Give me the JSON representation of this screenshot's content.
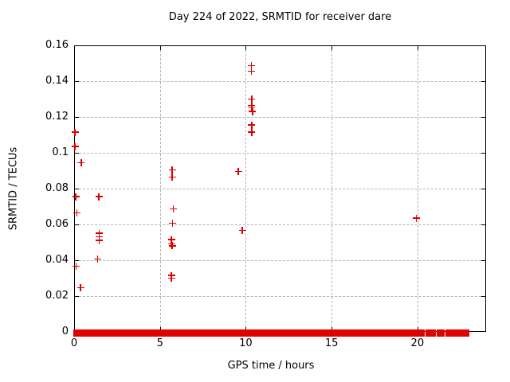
{
  "title": "Day 224 of 2022, SRMTID for receiver dare",
  "colors": {
    "marker": "#e10000",
    "grid": "#b3b3b3",
    "axis": "#000000",
    "background": "#ffffff"
  },
  "chart_data": {
    "type": "scatter",
    "title": "Day 224 of 2022, SRMTID for receiver dare",
    "xlabel": "GPS time / hours",
    "ylabel": "SRMTID / TECUs",
    "xlim": [
      0,
      24
    ],
    "ylim": [
      0,
      0.16
    ],
    "xticks": {
      "values": [
        0,
        5,
        10,
        15,
        20
      ],
      "labels": [
        "0",
        "5",
        "10",
        "15",
        "20"
      ]
    },
    "yticks": {
      "values": [
        0,
        0.02,
        0.04,
        0.06,
        0.08,
        0.1,
        0.12,
        0.14,
        0.16
      ],
      "labels": [
        "0",
        "0.02",
        "0.04",
        "0.06",
        "0.08",
        "0.1",
        "0.12",
        "0.14",
        "0.16"
      ]
    },
    "grid": true,
    "legend": false,
    "marker": "plus",
    "series": [
      {
        "name": "SRMTID",
        "color": "#e10000",
        "points": [
          [
            0.0,
            0.112
          ],
          [
            0.0,
            0.104
          ],
          [
            0.37,
            0.095
          ],
          [
            0.05,
            0.076
          ],
          [
            0.12,
            0.067
          ],
          [
            0.07,
            0.037
          ],
          [
            0.33,
            0.025
          ],
          [
            1.4,
            0.076
          ],
          [
            1.42,
            0.0555
          ],
          [
            1.42,
            0.0535
          ],
          [
            1.42,
            0.0515
          ],
          [
            1.32,
            0.041
          ],
          [
            5.67,
            0.091
          ],
          [
            5.67,
            0.087
          ],
          [
            5.72,
            0.069
          ],
          [
            5.7,
            0.061
          ],
          [
            5.62,
            0.052
          ],
          [
            5.62,
            0.0495
          ],
          [
            5.67,
            0.0485
          ],
          [
            5.62,
            0.032
          ],
          [
            5.62,
            0.0305
          ],
          [
            9.52,
            0.09
          ],
          [
            9.75,
            0.057
          ],
          [
            10.27,
            0.149
          ],
          [
            10.27,
            0.146
          ],
          [
            10.3,
            0.1305
          ],
          [
            10.3,
            0.127
          ],
          [
            10.3,
            0.126
          ],
          [
            10.35,
            0.1235
          ],
          [
            10.3,
            0.116
          ],
          [
            10.3,
            0.112
          ],
          [
            19.9,
            0.064
          ]
        ]
      }
    ],
    "zero_line_value": 0,
    "zero_line_segments_hours": [
      [
        0.02,
        0.55
      ],
      [
        0.65,
        1.15
      ],
      [
        1.25,
        1.55
      ],
      [
        1.62,
        2.05
      ],
      [
        2.12,
        2.45
      ],
      [
        2.52,
        3.6
      ],
      [
        3.75,
        4.15
      ],
      [
        4.22,
        4.5
      ],
      [
        4.57,
        4.95
      ],
      [
        5.02,
        5.3
      ],
      [
        5.37,
        5.85
      ],
      [
        5.95,
        6.5
      ],
      [
        6.57,
        6.9
      ],
      [
        6.97,
        7.6
      ],
      [
        7.67,
        8.3
      ],
      [
        8.45,
        9.0
      ],
      [
        9.07,
        9.9
      ],
      [
        9.97,
        10.45
      ],
      [
        10.52,
        10.85
      ],
      [
        10.97,
        11.3
      ],
      [
        11.37,
        11.65
      ],
      [
        11.72,
        12.2
      ],
      [
        12.27,
        12.6
      ],
      [
        12.67,
        13.1
      ],
      [
        13.2,
        14.3
      ],
      [
        14.37,
        14.75
      ],
      [
        14.82,
        15.1
      ],
      [
        15.2,
        15.55
      ],
      [
        15.62,
        15.9
      ],
      [
        15.97,
        16.3
      ],
      [
        16.4,
        16.75
      ],
      [
        16.82,
        17.05
      ],
      [
        17.12,
        17.2
      ],
      [
        17.3,
        17.38
      ],
      [
        17.45,
        17.52
      ],
      [
        17.6,
        17.68
      ],
      [
        17.78,
        17.85
      ],
      [
        17.95,
        18.02
      ],
      [
        18.12,
        18.6
      ],
      [
        18.7,
        18.95
      ],
      [
        19.05,
        19.3
      ],
      [
        19.5,
        20.3
      ],
      [
        20.5,
        20.95
      ],
      [
        21.15,
        21.45
      ],
      [
        21.7,
        22.9
      ]
    ]
  }
}
